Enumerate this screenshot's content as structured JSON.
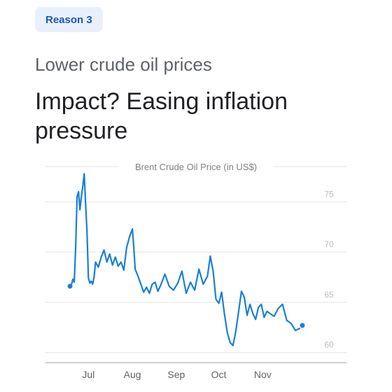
{
  "badge": {
    "label": "Reason 3"
  },
  "subtitle": "Lower crude oil prices",
  "headline": "Impact? Easing inflation pressure",
  "colors": {
    "line": "#1a7fd8",
    "badge_bg": "#e8f0fb",
    "badge_text": "#1f57b7",
    "grid": "#e3e3e3",
    "tick_text": "#bdbdbd",
    "month_text": "#5f6368"
  },
  "chart_data": {
    "type": "line",
    "title": "Brent Crude Oil Price (in US$)",
    "ylim": [
      59,
      78.5
    ],
    "y_ticks": [
      60,
      65,
      70,
      75
    ],
    "x_range": [
      "2023-06-17",
      "2023-11-30"
    ],
    "x_ticks": [
      {
        "label": "Jul",
        "date": "2023-07-01"
      },
      {
        "label": "Aug",
        "date": "2023-08-01"
      },
      {
        "label": "Sep",
        "date": "2023-09-01"
      },
      {
        "label": "Oct",
        "date": "2023-10-01"
      },
      {
        "label": "Nov",
        "date": "2023-11-01"
      }
    ],
    "grid": true,
    "series": [
      {
        "x": [
          "2023-06-19",
          "2023-06-20",
          "2023-06-21",
          "2023-06-22",
          "2023-06-23",
          "2023-06-24",
          "2023-06-25",
          "2023-06-26",
          "2023-06-27",
          "2023-06-28",
          "2023-06-29",
          "2023-06-30",
          "2023-07-01",
          "2023-07-02",
          "2023-07-03",
          "2023-07-04",
          "2023-07-05",
          "2023-07-06",
          "2023-07-08",
          "2023-07-10",
          "2023-07-12",
          "2023-07-14",
          "2023-07-16",
          "2023-07-18",
          "2023-07-20",
          "2023-07-22",
          "2023-07-24",
          "2023-07-26",
          "2023-07-28",
          "2023-07-30",
          "2023-08-01",
          "2023-08-02",
          "2023-08-03",
          "2023-08-05",
          "2023-08-07",
          "2023-08-09",
          "2023-08-11",
          "2023-08-13",
          "2023-08-15",
          "2023-08-17",
          "2023-08-19",
          "2023-08-21",
          "2023-08-24",
          "2023-08-27",
          "2023-08-30",
          "2023-09-02",
          "2023-09-05",
          "2023-09-08",
          "2023-09-11",
          "2023-09-14",
          "2023-09-17",
          "2023-09-20",
          "2023-09-23",
          "2023-09-25",
          "2023-09-27",
          "2023-09-29",
          "2023-10-01",
          "2023-10-03",
          "2023-10-05",
          "2023-10-07",
          "2023-10-09",
          "2023-10-11",
          "2023-10-13",
          "2023-10-15",
          "2023-10-17",
          "2023-10-19",
          "2023-10-21",
          "2023-10-23",
          "2023-10-25",
          "2023-10-27",
          "2023-10-29",
          "2023-10-31",
          "2023-11-02",
          "2023-11-04",
          "2023-11-06",
          "2023-11-09",
          "2023-11-12",
          "2023-11-15",
          "2023-11-18",
          "2023-11-21",
          "2023-11-24",
          "2023-11-27"
        ],
        "y": [
          66.7,
          67.3,
          67.0,
          70.5,
          75.5,
          76.0,
          74.2,
          75.5,
          76.5,
          77.8,
          74.8,
          72.0,
          67.4,
          66.9,
          67.1,
          66.8,
          67.5,
          69.0,
          68.5,
          69.5,
          70.2,
          69.0,
          69.8,
          68.7,
          69.5,
          68.6,
          69.0,
          68.2,
          70.5,
          71.5,
          72.3,
          70.5,
          68.3,
          67.6,
          66.8,
          66.0,
          66.5,
          65.9,
          66.8,
          67.0,
          66.1,
          66.7,
          67.8,
          66.6,
          66.2,
          66.9,
          68.1,
          65.9,
          67.0,
          66.2,
          68.3,
          66.8,
          67.6,
          69.6,
          68.1,
          65.3,
          64.9,
          66.0,
          63.8,
          62.0,
          61.0,
          60.7,
          62.1,
          64.1,
          66.1,
          65.5,
          63.7,
          64.8,
          63.9,
          63.3,
          64.5,
          64.8,
          63.5,
          64.1,
          63.9,
          63.6,
          64.4,
          64.8,
          63.2,
          62.9,
          62.2,
          62.4
        ]
      }
    ],
    "markers": [
      {
        "date": "2023-06-18",
        "value": 66.6
      },
      {
        "date": "2023-11-29",
        "value": 62.7
      }
    ]
  }
}
